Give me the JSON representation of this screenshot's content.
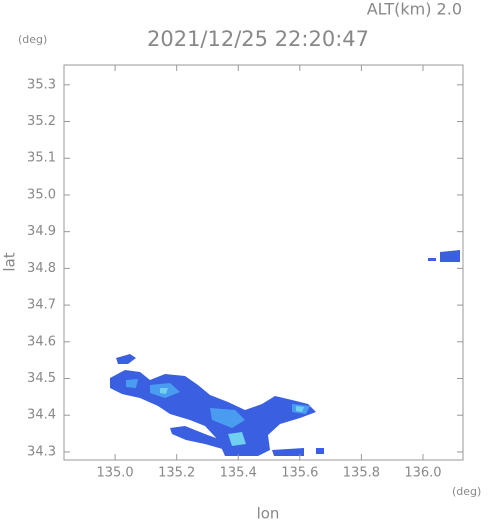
{
  "chart_data": {
    "type": "radar-map",
    "title": "2021/12/25 22:20:47",
    "subtitle": "ALT(km) 2.0",
    "x_label": "lon",
    "y_label": "lat",
    "x_unit": "(deg)",
    "y_unit": "(deg)",
    "xlim": [
      134.834,
      136.13
    ],
    "ylim": [
      34.278,
      35.354
    ],
    "xticks": [
      {
        "value": 135.0,
        "label": "135.0"
      },
      {
        "value": 135.2,
        "label": "135.2"
      },
      {
        "value": 135.4,
        "label": "135.4"
      },
      {
        "value": 135.6,
        "label": "135.6"
      },
      {
        "value": 135.8,
        "label": "135.8"
      },
      {
        "value": 136.0,
        "label": "136.0"
      }
    ],
    "yticks": [
      34.3,
      34.4,
      34.5,
      34.6,
      34.7,
      34.8,
      34.9,
      {
        "value": 35.0,
        "label": "35.0"
      },
      35.1,
      35.2,
      35.3
    ]
  }
}
